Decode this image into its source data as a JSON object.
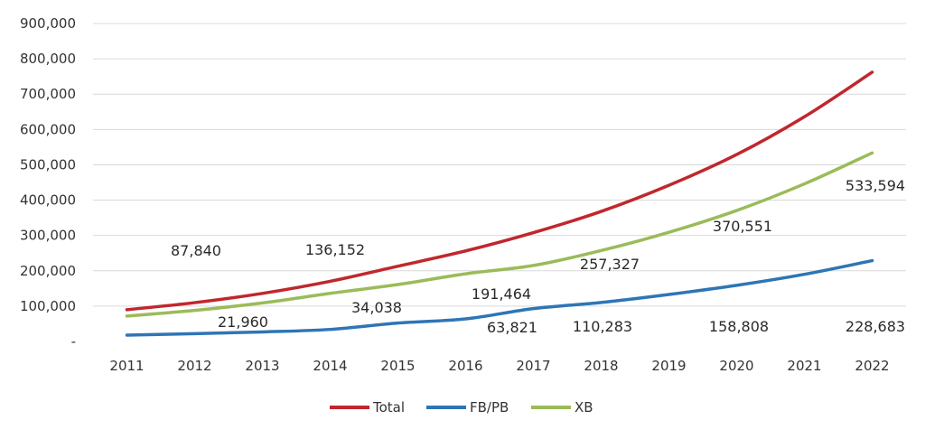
{
  "chart_data": {
    "type": "line",
    "title": "",
    "xlabel": "",
    "ylabel": "",
    "x": [
      "2011",
      "2012",
      "2013",
      "2014",
      "2015",
      "2016",
      "2017",
      "2018",
      "2019",
      "2020",
      "2021",
      "2022"
    ],
    "ylim": [
      0,
      900000
    ],
    "y_ticks": [
      {
        "value": 0,
        "label": "-"
      },
      {
        "value": 100000,
        "label": "100,000"
      },
      {
        "value": 200000,
        "label": "200,000"
      },
      {
        "value": 300000,
        "label": "300,000"
      },
      {
        "value": 400000,
        "label": "400,000"
      },
      {
        "value": 500000,
        "label": "500,000"
      },
      {
        "value": 600000,
        "label": "600,000"
      },
      {
        "value": 700000,
        "label": "700,000"
      },
      {
        "value": 800000,
        "label": "800,000"
      },
      {
        "value": 900000,
        "label": "900,000"
      }
    ],
    "grid": true,
    "legend_position": "bottom",
    "series": [
      {
        "name": "Total",
        "color": "#c0272d",
        "values": [
          89800,
          109800,
          136000,
          170200,
          213000,
          256300,
          308000,
          368000,
          442000,
          529000,
          636000,
          762000
        ]
      },
      {
        "name": "FB/PB",
        "color": "#2e75b6",
        "values": [
          18000,
          21960,
          27000,
          34038,
          52000,
          63821,
          93000,
          110283,
          133000,
          158808,
          190000,
          228683
        ]
      },
      {
        "name": "XB",
        "color": "#9bbb59",
        "values": [
          71800,
          87840,
          109000,
          136152,
          161000,
          191464,
          215000,
          257327,
          309000,
          370551,
          446000,
          533594
        ]
      }
    ],
    "annotations": [
      {
        "text": "87,840",
        "x": "2012"
      },
      {
        "text": "136,152",
        "x": "2014"
      },
      {
        "text": "191,464",
        "x": "2016"
      },
      {
        "text": "257,327",
        "x": "2018"
      },
      {
        "text": "370,551",
        "x": "2020"
      },
      {
        "text": "533,594",
        "x": "2022"
      },
      {
        "text": "21,960",
        "x": "2012"
      },
      {
        "text": "34,038",
        "x": "2014"
      },
      {
        "text": "63,821",
        "x": "2016"
      },
      {
        "text": "110,283",
        "x": "2018"
      },
      {
        "text": "158,808",
        "x": "2020"
      },
      {
        "text": "228,683",
        "x": "2022"
      }
    ]
  }
}
